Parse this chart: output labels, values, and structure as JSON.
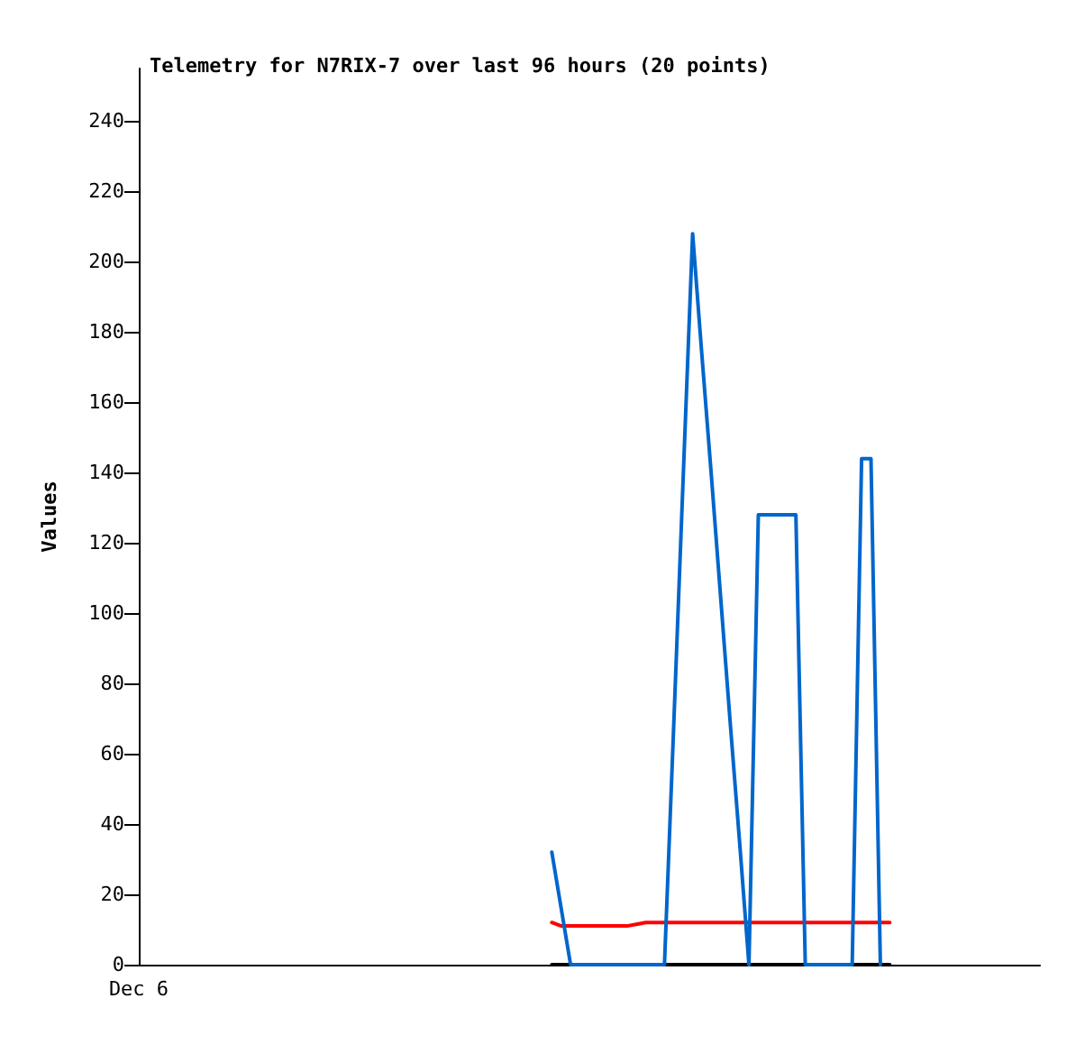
{
  "chart_data": {
    "type": "line",
    "title": "Telemetry for N7RIX-7 over last 96 hours (20 points)",
    "ylabel": "Values",
    "categories": [
      "Dec 6",
      null,
      null,
      null,
      null,
      null,
      null,
      null,
      null,
      null,
      null,
      null,
      null,
      null,
      null,
      null,
      null,
      null,
      null,
      null,
      null,
      null,
      null,
      null,
      null,
      null,
      null,
      null,
      null,
      null,
      null,
      null,
      null,
      null,
      null,
      null,
      null,
      null,
      null,
      null,
      null,
      null,
      null,
      null,
      null,
      null,
      null,
      null,
      null,
      null,
      null,
      null,
      null,
      null,
      null,
      null,
      null,
      null,
      null,
      null,
      null,
      null,
      null,
      null,
      null,
      null,
      null,
      null,
      null,
      null,
      null,
      null,
      null,
      null,
      null,
      null,
      null,
      null,
      null,
      null,
      null,
      null,
      null,
      null,
      null,
      null,
      null,
      null,
      null,
      null,
      null,
      null,
      null,
      null,
      null,
      null,
      null
    ],
    "ylim": [
      0,
      255
    ],
    "yticks": [
      0,
      20,
      40,
      60,
      80,
      100,
      120,
      140,
      160,
      180,
      200,
      220,
      240
    ],
    "grid": false,
    "marker": "none",
    "line_style": "solid",
    "series": [
      {
        "color": "#000000",
        "values": [
          null,
          null,
          null,
          null,
          null,
          null,
          null,
          null,
          null,
          null,
          null,
          null,
          null,
          null,
          null,
          null,
          null,
          null,
          null,
          null,
          null,
          null,
          null,
          null,
          null,
          null,
          null,
          null,
          null,
          null,
          null,
          null,
          null,
          null,
          null,
          null,
          null,
          null,
          null,
          null,
          null,
          null,
          null,
          null,
          0,
          0,
          0,
          0,
          0,
          0,
          0,
          0,
          0,
          0,
          0,
          0,
          0,
          0,
          0,
          0,
          0,
          0,
          0,
          0,
          0,
          0,
          0,
          0,
          0,
          0,
          0,
          0,
          0,
          0,
          0,
          0,
          0,
          0,
          0,
          0,
          0,
          null,
          null,
          null,
          null,
          null,
          null,
          null,
          null,
          null,
          null,
          null,
          null,
          null,
          null,
          null,
          null
        ]
      },
      {
        "color": "#ff0000",
        "values": [
          null,
          null,
          null,
          null,
          null,
          null,
          null,
          null,
          null,
          null,
          null,
          null,
          null,
          null,
          null,
          null,
          null,
          null,
          null,
          null,
          null,
          null,
          null,
          null,
          null,
          null,
          null,
          null,
          null,
          null,
          null,
          null,
          null,
          null,
          null,
          null,
          null,
          null,
          null,
          null,
          null,
          null,
          null,
          null,
          12,
          11,
          11,
          11,
          11,
          11,
          11,
          11,
          11,
          11.5,
          12,
          12,
          12,
          12,
          12,
          12,
          12,
          12,
          12,
          12,
          12,
          12,
          12,
          12,
          12,
          12,
          12,
          12,
          12,
          12,
          12,
          12,
          12,
          12,
          12,
          12,
          12,
          null,
          null,
          null,
          null,
          null,
          null,
          null,
          null,
          null,
          null,
          null,
          null,
          null,
          null,
          null,
          null
        ]
      },
      {
        "color": "#0066cc",
        "values": [
          null,
          null,
          null,
          null,
          null,
          null,
          null,
          null,
          null,
          null,
          null,
          null,
          null,
          null,
          null,
          null,
          null,
          null,
          null,
          null,
          null,
          null,
          null,
          null,
          null,
          null,
          null,
          null,
          null,
          null,
          null,
          null,
          null,
          null,
          null,
          null,
          null,
          null,
          null,
          null,
          null,
          null,
          null,
          null,
          32,
          16,
          0,
          0,
          0,
          0,
          0,
          0,
          0,
          0,
          0,
          0,
          0,
          69,
          139,
          208,
          173,
          139,
          104,
          69,
          35,
          0,
          128,
          128,
          128,
          128,
          128,
          0,
          0,
          0,
          0,
          0,
          0,
          144,
          144,
          0,
          null,
          null,
          null,
          null,
          null,
          null,
          null,
          null,
          null,
          null,
          null,
          null,
          null,
          null,
          null,
          null,
          null
        ]
      }
    ]
  }
}
